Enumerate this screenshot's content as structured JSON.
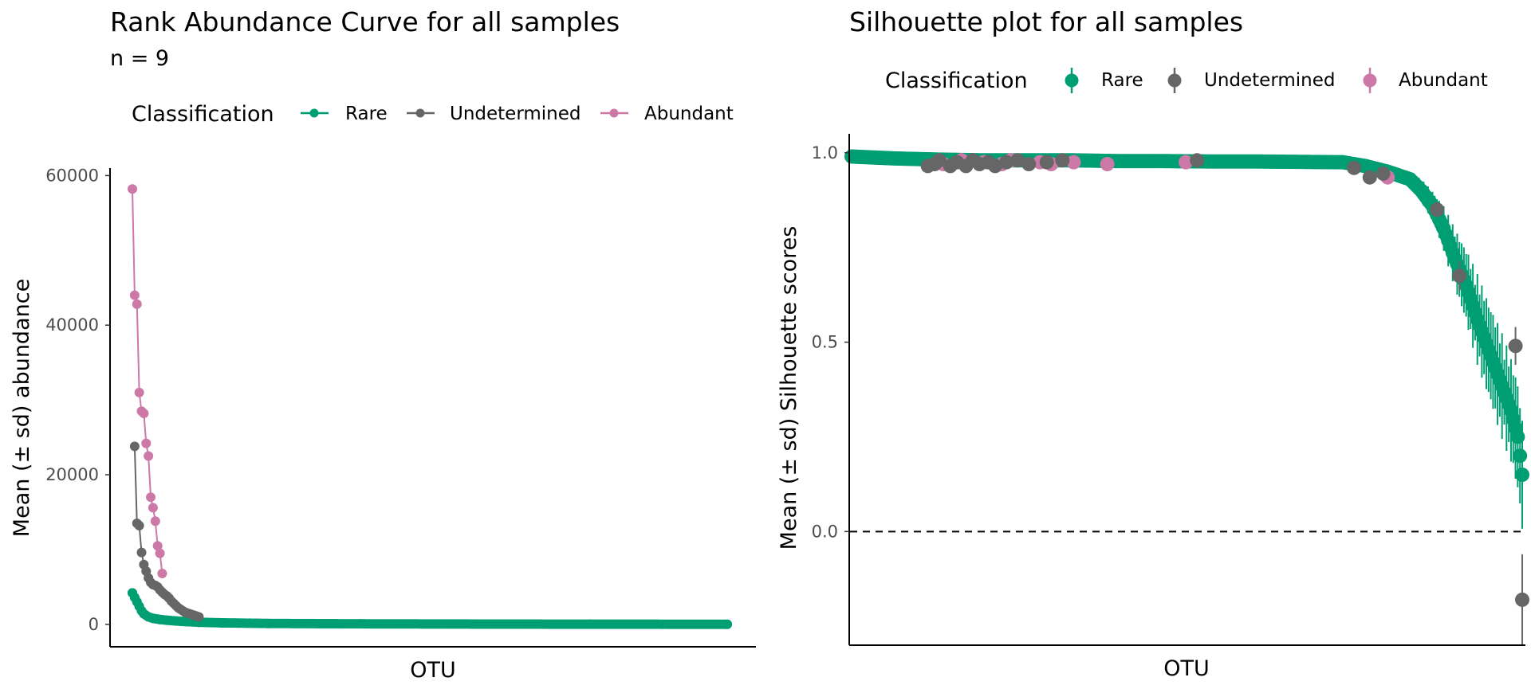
{
  "colors": {
    "Rare": "#009E73",
    "Undetermined": "#666666",
    "Abundant": "#CC79A7"
  },
  "chart_data": [
    {
      "type": "line",
      "title": "Rank Abundance Curve for all samples",
      "subtitle": "n =  9",
      "xlabel": "OTU",
      "ylabel": "Mean (± sd) abundance",
      "yticks": [
        "0",
        "20000",
        "40000",
        "60000"
      ],
      "ytick_values": [
        0,
        20000,
        40000,
        60000
      ],
      "ylim": [
        -3000,
        61000
      ],
      "legend_title": "Classification",
      "legend_position": "top",
      "legend": [
        "Rare",
        "Undetermined",
        "Abundant"
      ],
      "x_count": 260,
      "series": [
        {
          "name": "Abundant",
          "color": "#CC79A7",
          "x": [
            1,
            2,
            3,
            4,
            5,
            6,
            7,
            8,
            9,
            10,
            11,
            12,
            13,
            14
          ],
          "y": [
            58200,
            44000,
            42800,
            31000,
            28500,
            28200,
            24200,
            22500,
            17000,
            15600,
            13800,
            10500,
            9500,
            6800
          ]
        },
        {
          "name": "Undetermined",
          "color": "#666666",
          "x": [
            2,
            3,
            4,
            5,
            6,
            7,
            8,
            9,
            10,
            11,
            12,
            13,
            14,
            15,
            16,
            17,
            18,
            19,
            20,
            21,
            22,
            23,
            24,
            25,
            26,
            27,
            28,
            29,
            30
          ],
          "y": [
            23800,
            13500,
            13200,
            9600,
            8000,
            7100,
            6200,
            5600,
            5300,
            5200,
            5000,
            4600,
            4300,
            4000,
            3800,
            3500,
            3100,
            2800,
            2500,
            2200,
            2000,
            1800,
            1600,
            1500,
            1400,
            1300,
            1200,
            1100,
            1000
          ]
        },
        {
          "name": "Rare",
          "color": "#009E73",
          "x": [
            1,
            2,
            3,
            4,
            5,
            6,
            8,
            10,
            13,
            16,
            20,
            25,
            30,
            40,
            60,
            100,
            150,
            200,
            260
          ],
          "y": [
            4200,
            3600,
            3000,
            2400,
            1800,
            1400,
            1000,
            800,
            650,
            550,
            450,
            350,
            280,
            200,
            120,
            70,
            40,
            20,
            10
          ]
        }
      ]
    },
    {
      "type": "scatter",
      "title": "Silhouette plot for all samples",
      "xlabel": "OTU",
      "ylabel": "Mean (± sd) Silhouette scores",
      "yticks": [
        "0.0",
        "0.5",
        "1.0"
      ],
      "ytick_values": [
        0.0,
        0.5,
        1.0
      ],
      "ylim": [
        -0.3,
        1.05
      ],
      "reference_line_y": 0.0,
      "legend_title": "Classification",
      "legend_position": "top",
      "legend": [
        "Rare",
        "Undetermined",
        "Abundant"
      ],
      "x_count": 300,
      "series": [
        {
          "name": "Rare",
          "color": "#009E73",
          "x": [
            1,
            20,
            40,
            60,
            80,
            100,
            120,
            140,
            160,
            180,
            200,
            220,
            230,
            240,
            250,
            255,
            260,
            265,
            270,
            275,
            280,
            285,
            290,
            295,
            298,
            300
          ],
          "y": [
            0.99,
            0.985,
            0.982,
            0.98,
            0.98,
            0.98,
            0.978,
            0.978,
            0.977,
            0.977,
            0.976,
            0.975,
            0.965,
            0.95,
            0.93,
            0.9,
            0.86,
            0.8,
            0.72,
            0.65,
            0.56,
            0.48,
            0.4,
            0.32,
            0.25,
            0.15
          ],
          "sd": [
            0.005,
            0.005,
            0.005,
            0.005,
            0.005,
            0.005,
            0.005,
            0.005,
            0.005,
            0.005,
            0.006,
            0.008,
            0.01,
            0.015,
            0.02,
            0.03,
            0.04,
            0.06,
            0.08,
            0.1,
            0.12,
            0.13,
            0.14,
            0.14,
            0.15,
            0.15
          ]
        },
        {
          "name": "Undetermined",
          "color": "#666666",
          "x": [
            35,
            38,
            40,
            45,
            48,
            52,
            55,
            58,
            62,
            65,
            70,
            75,
            80,
            88,
            95,
            155,
            225,
            232,
            238,
            262,
            272,
            297,
            300
          ],
          "y": [
            0.965,
            0.97,
            0.98,
            0.965,
            0.975,
            0.965,
            0.98,
            0.97,
            0.975,
            0.965,
            0.975,
            0.98,
            0.97,
            0.975,
            0.98,
            0.98,
            0.96,
            0.935,
            0.945,
            0.85,
            0.675,
            0.49,
            -0.18
          ],
          "sd": [
            0.005,
            0.005,
            0.005,
            0.005,
            0.005,
            0.005,
            0.005,
            0.005,
            0.005,
            0.005,
            0.005,
            0.005,
            0.005,
            0.005,
            0.005,
            0.005,
            0.01,
            0.01,
            0.01,
            0.02,
            0.04,
            0.05,
            0.12
          ]
        },
        {
          "name": "Abundant",
          "color": "#CC79A7",
          "x": [
            42,
            50,
            60,
            68,
            72,
            85,
            90,
            100,
            115,
            150,
            240
          ],
          "y": [
            0.97,
            0.98,
            0.975,
            0.97,
            0.98,
            0.975,
            0.97,
            0.975,
            0.97,
            0.975,
            0.935
          ],
          "sd": [
            0.005,
            0.005,
            0.005,
            0.005,
            0.005,
            0.005,
            0.005,
            0.005,
            0.005,
            0.005,
            0.01
          ]
        }
      ]
    }
  ]
}
